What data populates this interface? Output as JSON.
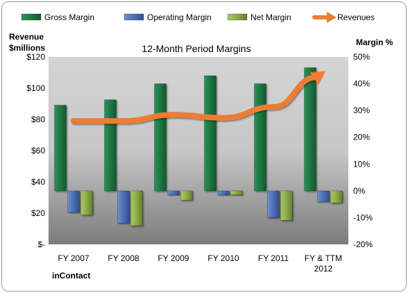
{
  "chart_data": {
    "type": "bar",
    "title": "12-Month Period Margins",
    "company": "inContact",
    "categories": [
      "FY 2007",
      "FY 2008",
      "FY 2009",
      "FY 2010",
      "FY 2011",
      "FY & TTM 2012"
    ],
    "left_axis": {
      "label_line1": "Revenue",
      "label_line2": "$millions",
      "min": 0,
      "max": 120,
      "step": 20,
      "tick_labels": [
        "$-",
        "$20",
        "$40",
        "$60",
        "$80",
        "$100",
        "$120"
      ]
    },
    "right_axis": {
      "label": "Margin %",
      "min": -20,
      "max": 50,
      "step": 10,
      "tick_labels": [
        "-20%",
        "-10%",
        "0%",
        "10%",
        "20%",
        "30%",
        "40%",
        "50%"
      ]
    },
    "series": [
      {
        "name": "Gross Margin",
        "kind": "bar",
        "axis": "right",
        "color": "#1f7a45",
        "values": [
          32,
          34,
          40,
          43,
          40,
          46
        ]
      },
      {
        "name": "Operating Margin",
        "kind": "bar",
        "axis": "right",
        "color": "#4f72b8",
        "values": [
          -8,
          -12,
          -1.5,
          -1.5,
          -10,
          -4
        ]
      },
      {
        "name": "Net Margin",
        "kind": "bar",
        "axis": "right",
        "color": "#8fb04a",
        "values": [
          -9,
          -13,
          -3.5,
          -1.5,
          -11,
          -4.5
        ]
      },
      {
        "name": "Revenues",
        "kind": "line",
        "axis": "left",
        "color": "#ed7d31",
        "values": [
          79,
          79,
          83,
          81,
          88,
          110
        ]
      }
    ],
    "legend_position": "top",
    "grid": false
  }
}
